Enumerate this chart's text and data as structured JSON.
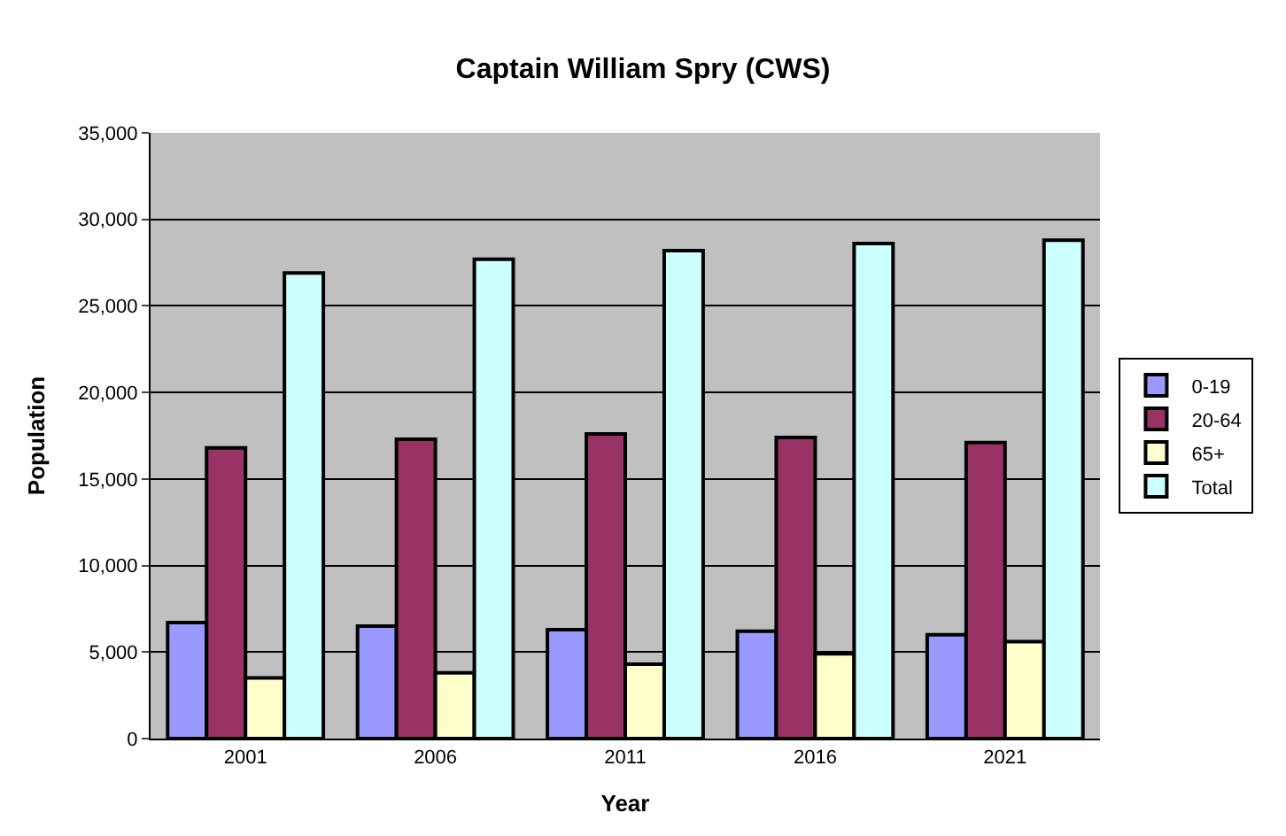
{
  "chart_data": {
    "type": "bar",
    "title": "Captain William Spry (CWS)",
    "xlabel": "Year",
    "ylabel": "Population",
    "categories": [
      "2001",
      "2006",
      "2011",
      "2016",
      "2021"
    ],
    "series": [
      {
        "name": "0-19",
        "color": "#9999ff",
        "values": [
          6700,
          6500,
          6300,
          6200,
          6000
        ]
      },
      {
        "name": "20-64",
        "color": "#993366",
        "values": [
          16800,
          17300,
          17600,
          17400,
          17100
        ]
      },
      {
        "name": "65+",
        "color": "#ffffcc",
        "values": [
          3500,
          3800,
          4300,
          4900,
          5600
        ]
      },
      {
        "name": "Total",
        "color": "#ccffff",
        "values": [
          26900,
          27700,
          28200,
          28600,
          28800
        ]
      }
    ],
    "ylim": [
      0,
      35000
    ],
    "yticks": [
      {
        "value": 0,
        "label": "0"
      },
      {
        "value": 5000,
        "label": "5,000"
      },
      {
        "value": 10000,
        "label": "10,000"
      },
      {
        "value": 15000,
        "label": "15,000"
      },
      {
        "value": 20000,
        "label": "20,000"
      },
      {
        "value": 25000,
        "label": "25,000"
      },
      {
        "value": 30000,
        "label": "30,000"
      },
      {
        "value": 35000,
        "label": "35,000"
      }
    ],
    "grid": "y",
    "legend": "right"
  }
}
